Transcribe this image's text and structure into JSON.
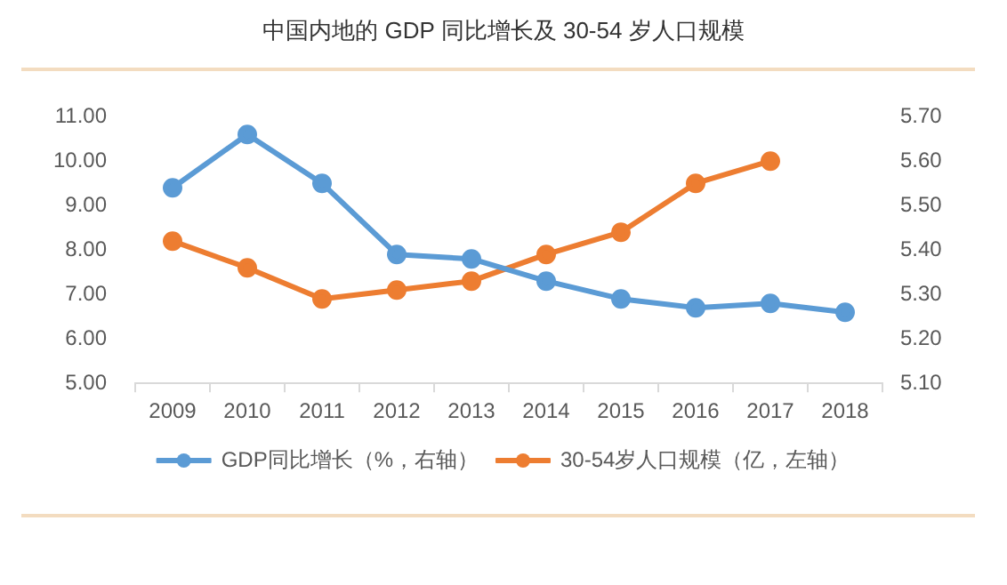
{
  "chart_data": {
    "type": "line",
    "title": "中国内地的 GDP 同比增长及 30-54 岁人口规模",
    "categories": [
      "2009",
      "2010",
      "2011",
      "2012",
      "2013",
      "2014",
      "2015",
      "2016",
      "2017",
      "2018"
    ],
    "series": [
      {
        "name": "GDP同比增长（%，右轴）",
        "color": "#5b9bd5",
        "values": [
          9.4,
          10.6,
          9.5,
          7.9,
          7.8,
          7.3,
          6.9,
          6.7,
          6.8,
          6.6
        ]
      },
      {
        "name": "30-54岁人口规模（亿，左轴）",
        "color": "#ed7d31",
        "axis": "y2",
        "values": [
          5.42,
          5.36,
          5.29,
          5.31,
          5.33,
          5.39,
          5.44,
          5.55,
          5.6,
          null
        ]
      }
    ],
    "ylim": [
      5,
      11
    ],
    "yticks": [
      {
        "value": 5,
        "label": "5.00"
      },
      {
        "value": 6,
        "label": "6.00"
      },
      {
        "value": 7,
        "label": "7.00"
      },
      {
        "value": 8,
        "label": "8.00"
      },
      {
        "value": 9,
        "label": "9.00"
      },
      {
        "value": 10,
        "label": "10.00"
      },
      {
        "value": 11,
        "label": "11.00"
      }
    ],
    "y2lim": [
      5.1,
      5.7
    ],
    "y2ticks": [
      {
        "value": 5.1,
        "label": "5.10"
      },
      {
        "value": 5.2,
        "label": "5.20"
      },
      {
        "value": 5.3,
        "label": "5.30"
      },
      {
        "value": 5.4,
        "label": "5.40"
      },
      {
        "value": 5.5,
        "label": "5.50"
      },
      {
        "value": 5.6,
        "label": "5.60"
      },
      {
        "value": 5.7,
        "label": "5.70"
      }
    ],
    "grid": false,
    "legend": "bottom",
    "marker": "circle",
    "line_style": "solid"
  }
}
